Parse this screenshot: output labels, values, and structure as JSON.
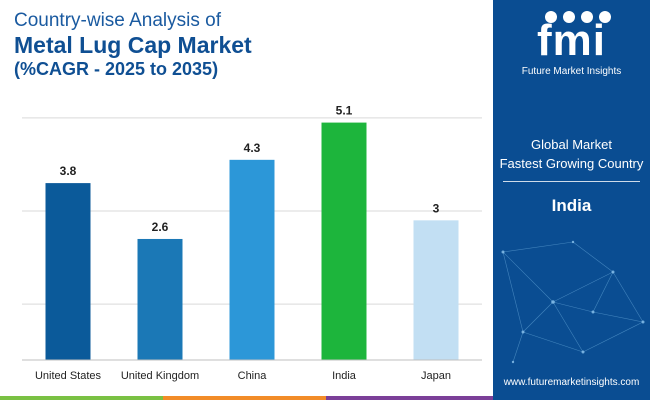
{
  "title": {
    "line1": "Country-wise Analysis of",
    "line2": "Metal Lug Cap Market",
    "line3": "(%CAGR - 2025 to 2035)"
  },
  "chart_data": {
    "type": "bar",
    "categories": [
      "United States",
      "United Kingdom",
      "China",
      "India",
      "Japan"
    ],
    "values": [
      3.8,
      2.6,
      4.3,
      5.1,
      3
    ],
    "value_labels": [
      "3.8",
      "2.6",
      "4.3",
      "5.1",
      "3"
    ],
    "colors": [
      "#0b5a9a",
      "#1b78b6",
      "#2c97d8",
      "#1db53c",
      "#c2dff3"
    ],
    "ylim": [
      0,
      5.8
    ],
    "grid": true,
    "legend": "none"
  },
  "panel": {
    "logo_text": "fmi",
    "logo_subtitle": "Future Market Insights",
    "label_line1": "Global Market",
    "label_line2": "Fastest Growing Country",
    "country": "India",
    "url": "www.futuremarketinsights.com"
  },
  "colors": {
    "panel_bg": "#0a4d92",
    "title_blue": "#0f4f93",
    "bar_accent_1": "#7ac143",
    "bar_accent_2": "#f28c28",
    "bar_accent_3": "#7b3f98"
  }
}
